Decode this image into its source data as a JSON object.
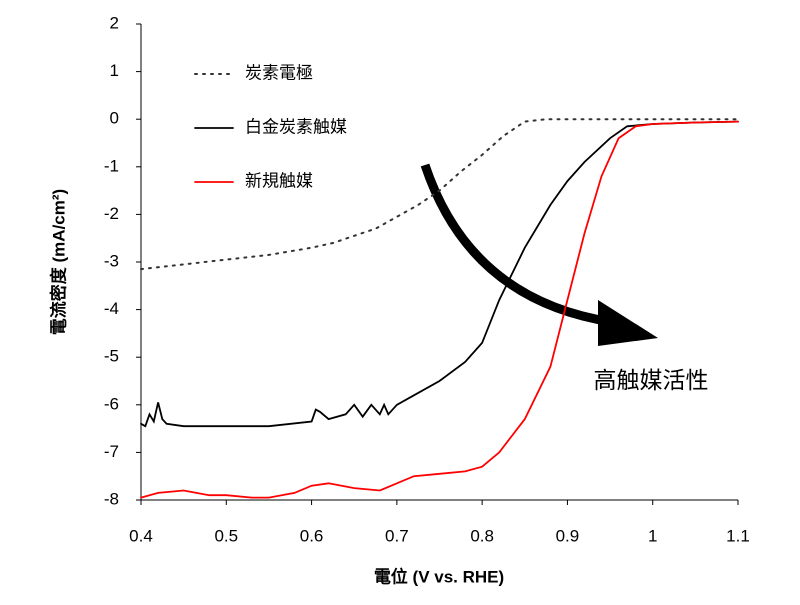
{
  "chart_data": {
    "type": "line",
    "xlabel": "電位 (V vs. RHE)",
    "ylabel": "電流密度 (mA/cm²)",
    "xlim": [
      0.4,
      1.1
    ],
    "xticks": [
      0.4,
      0.5,
      0.6,
      0.7,
      0.8,
      0.9,
      1,
      1.1
    ],
    "ylim": [
      -8,
      2
    ],
    "yticks": [
      -8,
      -7,
      -6,
      -5,
      -4,
      -3,
      -2,
      -1,
      0,
      1,
      2
    ],
    "grid": false,
    "legend": "upper left",
    "annotation": "高触媒活性",
    "series": [
      {
        "name": "炭素電極",
        "color": "#333333",
        "style": "dotted",
        "x": [
          0.4,
          0.45,
          0.5,
          0.55,
          0.6,
          0.625,
          0.65,
          0.675,
          0.7,
          0.725,
          0.75,
          0.775,
          0.8,
          0.825,
          0.85,
          0.875,
          0.9,
          1.0,
          1.1
        ],
        "values": [
          -3.15,
          -3.05,
          -2.95,
          -2.85,
          -2.7,
          -2.6,
          -2.45,
          -2.3,
          -2.05,
          -1.8,
          -1.5,
          -1.1,
          -0.75,
          -0.35,
          -0.05,
          0,
          0,
          0,
          0
        ]
      },
      {
        "name": "白金炭素触媒",
        "color": "#000000",
        "style": "solid",
        "x": [
          0.4,
          0.405,
          0.41,
          0.415,
          0.42,
          0.425,
          0.43,
          0.45,
          0.5,
          0.55,
          0.6,
          0.605,
          0.61,
          0.62,
          0.64,
          0.65,
          0.66,
          0.67,
          0.68,
          0.685,
          0.69,
          0.7,
          0.72,
          0.75,
          0.78,
          0.8,
          0.82,
          0.85,
          0.88,
          0.9,
          0.92,
          0.95,
          0.97,
          1.0,
          1.05,
          1.1
        ],
        "values": [
          -6.4,
          -6.45,
          -6.2,
          -6.35,
          -5.95,
          -6.3,
          -6.4,
          -6.45,
          -6.45,
          -6.45,
          -6.35,
          -6.1,
          -6.15,
          -6.3,
          -6.2,
          -6.0,
          -6.25,
          -6.0,
          -6.2,
          -6.0,
          -6.2,
          -6.0,
          -5.8,
          -5.5,
          -5.1,
          -4.7,
          -3.8,
          -2.7,
          -1.8,
          -1.3,
          -0.9,
          -0.4,
          -0.15,
          -0.1,
          -0.07,
          -0.05
        ]
      },
      {
        "name": "新規触媒",
        "color": "#ff0000",
        "style": "solid",
        "x": [
          0.4,
          0.42,
          0.45,
          0.48,
          0.5,
          0.53,
          0.55,
          0.58,
          0.6,
          0.62,
          0.65,
          0.68,
          0.7,
          0.72,
          0.75,
          0.78,
          0.8,
          0.82,
          0.85,
          0.88,
          0.9,
          0.92,
          0.94,
          0.96,
          0.98,
          1.0,
          1.05,
          1.1
        ],
        "values": [
          -7.95,
          -7.85,
          -7.8,
          -7.9,
          -7.9,
          -7.95,
          -7.95,
          -7.85,
          -7.7,
          -7.65,
          -7.75,
          -7.8,
          -7.65,
          -7.5,
          -7.45,
          -7.4,
          -7.3,
          -7.0,
          -6.3,
          -5.2,
          -3.8,
          -2.4,
          -1.2,
          -0.4,
          -0.15,
          -0.1,
          -0.07,
          -0.05
        ]
      }
    ]
  }
}
